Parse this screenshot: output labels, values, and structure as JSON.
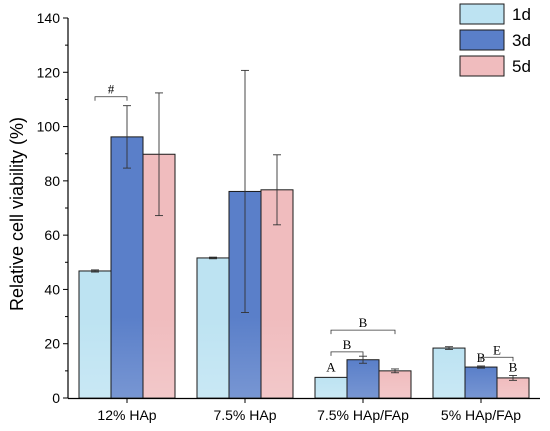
{
  "chart_data": {
    "type": "bar",
    "title": "",
    "xlabel": "",
    "ylabel": "Relative cell viability (%)",
    "ylim": [
      0,
      140
    ],
    "yticks": [
      "0",
      "20",
      "40",
      "60",
      "80",
      "100",
      "120",
      "140"
    ],
    "categories": [
      "12% HAp",
      "7.5% HAp",
      "7.5% HAp/FAp",
      "5% HAp/FAp"
    ],
    "series": [
      {
        "name": "1d",
        "color": "#bde3f2",
        "values": [
          46.8,
          51.6,
          7.6,
          18.4
        ],
        "errors": [
          0.4,
          0.3,
          0.0,
          0.5
        ]
      },
      {
        "name": "3d",
        "color": "#5a7fc9",
        "values": [
          96.2,
          76.1,
          14.1,
          11.4
        ],
        "errors": [
          11.5,
          44.6,
          1.3,
          0.4
        ]
      },
      {
        "name": "5d",
        "color": "#f0bcbe",
        "values": [
          89.8,
          76.7,
          10.0,
          7.4
        ],
        "errors": [
          22.6,
          12.9,
          0.7,
          0.9
        ]
      }
    ],
    "legend": {
      "position": "top-right",
      "labels": [
        "1d",
        "3d",
        "5d"
      ]
    },
    "annotations": [
      {
        "label": "#",
        "group": 0,
        "from_series": 0,
        "to_series": 1,
        "y": 111
      },
      {
        "label": "B",
        "group": 2,
        "from_series": 0,
        "to_series": 1,
        "y": 17
      },
      {
        "label": "B",
        "group": 2,
        "from_series": 0,
        "to_series": 2,
        "y": 25
      },
      {
        "label": "E",
        "group": 3,
        "from_series": 1,
        "to_series": 2,
        "y": 15
      }
    ],
    "bar_labels": [
      {
        "label": "A",
        "group": 2,
        "series": 0,
        "y": 9
      },
      {
        "label": "B",
        "group": 3,
        "series": 1,
        "y": 12.5
      },
      {
        "label": "B",
        "group": 3,
        "series": 2,
        "y": 9
      }
    ]
  }
}
